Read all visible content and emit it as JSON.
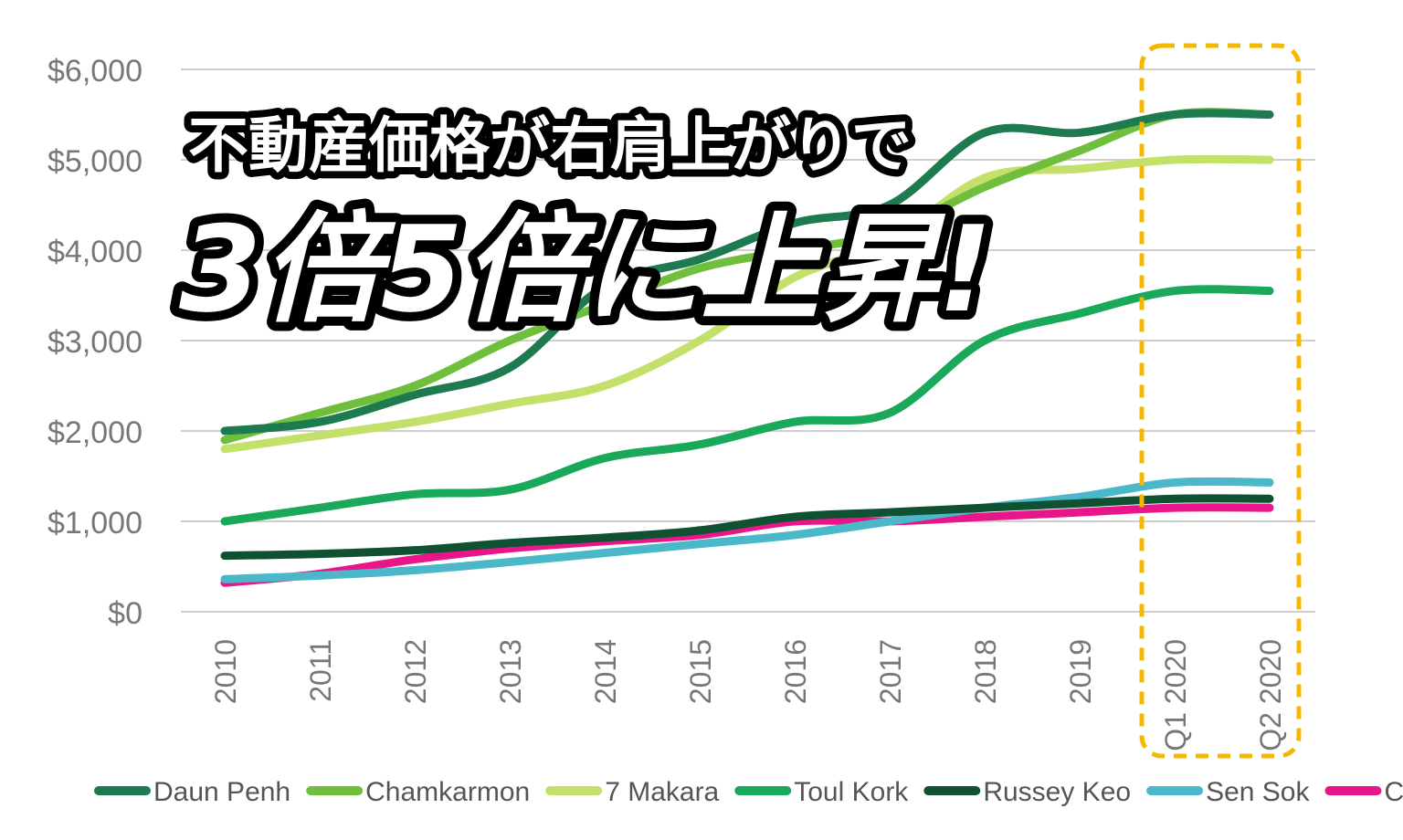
{
  "chart_data": {
    "type": "line",
    "categories": [
      "2010",
      "2011",
      "2012",
      "2013",
      "2014",
      "2015",
      "2016",
      "2017",
      "2018",
      "2019",
      "Q1 2020",
      "Q2 2020"
    ],
    "y_tick_labels": [
      "$0",
      "$1,000",
      "$2,000",
      "$3,000",
      "$4,000",
      "$5,000",
      "$6,000"
    ],
    "ylim": [
      0,
      6000
    ],
    "grid": true,
    "legend_position": "bottom",
    "series": [
      {
        "name": "Daun Penh",
        "color": "#1e7a4f",
        "values": [
          2000,
          2100,
          2400,
          2700,
          3600,
          3900,
          4300,
          4500,
          5300,
          5300,
          5500,
          5500
        ]
      },
      {
        "name": "Chamkarmon",
        "color": "#6fbf3c",
        "values": [
          1900,
          2200,
          2500,
          3000,
          3400,
          3800,
          4000,
          4200,
          4700,
          5100,
          5500,
          5500
        ]
      },
      {
        "name": "7 Makara",
        "color": "#c3e06a",
        "values": [
          1800,
          1950,
          2100,
          2300,
          2500,
          3000,
          3700,
          4100,
          4800,
          4900,
          5000,
          5000
        ]
      },
      {
        "name": "Toul Kork",
        "color": "#1aa85a",
        "values": [
          1000,
          1150,
          1300,
          1350,
          1700,
          1850,
          2100,
          2200,
          3000,
          3300,
          3550,
          3550
        ]
      },
      {
        "name": "Russey Keo",
        "color": "#0f5132",
        "values": [
          620,
          640,
          680,
          760,
          820,
          900,
          1050,
          1100,
          1150,
          1200,
          1250,
          1250
        ]
      },
      {
        "name": "Sen Sok",
        "color": "#4ab8c9",
        "values": [
          360,
          400,
          460,
          550,
          650,
          750,
          850,
          1000,
          1150,
          1270,
          1430,
          1430
        ]
      },
      {
        "name": "Chroy Changvar",
        "color": "#e8168a",
        "values": [
          320,
          420,
          580,
          700,
          780,
          850,
          1000,
          1000,
          1050,
          1100,
          1150,
          1150
        ]
      }
    ],
    "highlight": {
      "categories": [
        "Q1 2020",
        "Q2 2020"
      ],
      "color": "#f5b800"
    }
  },
  "overlay": {
    "line1": "不動産価格が右肩上がりで",
    "line2": "3倍5倍に上昇!"
  }
}
